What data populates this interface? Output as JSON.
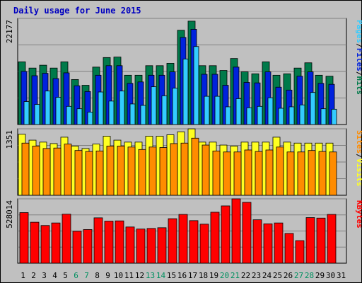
{
  "title": "Daily usage for June 2015",
  "colors": {
    "background": "#c0c0c0",
    "pages": "#33ccff",
    "files": "#0022dd",
    "hits": "#007a4a",
    "visits": "#ffff22",
    "sites": "#ff8c00",
    "kbytes": "#ff0000",
    "weekend_label": "#009060",
    "weekday_label": "#000000",
    "title": "#0000c0"
  },
  "chart_data": [
    {
      "type": "bar",
      "panel": "hits",
      "max_label": "22177",
      "ylim": [
        0,
        22177
      ],
      "legend": [
        {
          "text": "Pages",
          "color": "#33ccff"
        },
        {
          "text": "/",
          "color": "#000000"
        },
        {
          "text": "Files",
          "color": "#0022dd"
        },
        {
          "text": "/",
          "color": "#000000"
        },
        {
          "text": "Hits",
          "color": "#007a4a"
        }
      ],
      "categories": [
        "1",
        "2",
        "3",
        "4",
        "5",
        "6",
        "7",
        "8",
        "9",
        "10",
        "11",
        "12",
        "13",
        "14",
        "15",
        "16",
        "17",
        "18",
        "19",
        "20",
        "21",
        "22",
        "23",
        "24",
        "25",
        "26",
        "27",
        "28",
        "29",
        "30",
        "31"
      ],
      "series": [
        {
          "name": "Hits",
          "values": [
            13100,
            11800,
            12400,
            11800,
            13100,
            9400,
            8200,
            12000,
            14000,
            14100,
            10300,
            10300,
            12300,
            12300,
            12800,
            19700,
            21600,
            12300,
            12300,
            11300,
            13800,
            11000,
            10600,
            13100,
            10300,
            10600,
            11800,
            12900,
            10300,
            10100,
            null
          ]
        },
        {
          "name": "Files",
          "values": [
            11100,
            10200,
            10700,
            9600,
            10800,
            8100,
            6900,
            10300,
            12300,
            12300,
            8600,
            8900,
            10300,
            10300,
            11000,
            18200,
            19900,
            10500,
            10500,
            8200,
            12000,
            8800,
            8700,
            11000,
            7800,
            7200,
            10100,
            11000,
            8600,
            8400,
            null
          ]
        },
        {
          "name": "Pages",
          "values": [
            4800,
            4200,
            7000,
            5700,
            3800,
            3300,
            2600,
            6800,
            4900,
            7000,
            4300,
            4000,
            7900,
            6000,
            7600,
            13700,
            16300,
            5900,
            5900,
            3700,
            5400,
            3500,
            3800,
            5600,
            3400,
            3700,
            4100,
            6700,
            3300,
            3200,
            null
          ]
        }
      ]
    },
    {
      "type": "bar",
      "panel": "visits",
      "max_label": "1351",
      "ylim": [
        0,
        1351
      ],
      "legend": [
        {
          "text": "Sites",
          "color": "#ff8c00"
        },
        {
          "text": "/",
          "color": "#000000"
        },
        {
          "text": "Visits",
          "color": "#ffff22"
        }
      ],
      "categories": [
        "1",
        "2",
        "3",
        "4",
        "5",
        "6",
        "7",
        "8",
        "9",
        "10",
        "11",
        "12",
        "13",
        "14",
        "15",
        "16",
        "17",
        "18",
        "19",
        "20",
        "21",
        "22",
        "23",
        "24",
        "25",
        "26",
        "27",
        "28",
        "29",
        "30",
        "31"
      ],
      "series": [
        {
          "name": "Visits",
          "values": [
            1240,
            1120,
            1080,
            1050,
            1180,
            1000,
            950,
            1040,
            1200,
            1120,
            1080,
            1080,
            1200,
            1200,
            1230,
            1290,
            1350,
            1080,
            1080,
            1020,
            1000,
            1080,
            1080,
            1080,
            1180,
            1080,
            1060,
            1060,
            1060,
            1060,
            null
          ]
        },
        {
          "name": "Sites",
          "values": [
            1060,
            1000,
            950,
            960,
            1040,
            910,
            890,
            900,
            1000,
            1000,
            980,
            930,
            980,
            970,
            1050,
            1060,
            1160,
            1020,
            900,
            880,
            880,
            920,
            890,
            920,
            980,
            880,
            880,
            910,
            890,
            880,
            null
          ]
        }
      ]
    },
    {
      "type": "bar",
      "panel": "kbytes",
      "max_label": "528014",
      "ylim": [
        0,
        528014
      ],
      "legend": [
        {
          "text": "KBytes",
          "color": "#ff0000"
        }
      ],
      "categories": [
        "1",
        "2",
        "3",
        "4",
        "5",
        "6",
        "7",
        "8",
        "9",
        "10",
        "11",
        "12",
        "13",
        "14",
        "15",
        "16",
        "17",
        "18",
        "19",
        "20",
        "21",
        "22",
        "23",
        "24",
        "25",
        "26",
        "27",
        "28",
        "29",
        "30",
        "31"
      ],
      "series": [
        {
          "name": "KBytes",
          "values": [
            415000,
            336000,
            309000,
            330000,
            402000,
            262000,
            276000,
            372000,
            345000,
            347000,
            297000,
            280000,
            285000,
            291000,
            365000,
            400000,
            349000,
            320000,
            418000,
            470000,
            528000,
            499000,
            356000,
            323000,
            330000,
            244000,
            185000,
            374000,
            370000,
            400000,
            null
          ]
        }
      ]
    }
  ],
  "x_axis": {
    "labels": [
      "1",
      "2",
      "3",
      "4",
      "5",
      "6",
      "7",
      "8",
      "9",
      "10",
      "11",
      "12",
      "13",
      "14",
      "15",
      "16",
      "17",
      "18",
      "19",
      "20",
      "21",
      "22",
      "23",
      "24",
      "25",
      "26",
      "27",
      "28",
      "29",
      "30",
      "31"
    ],
    "weekend": [
      6,
      7,
      13,
      14,
      20,
      21,
      27,
      28
    ]
  }
}
